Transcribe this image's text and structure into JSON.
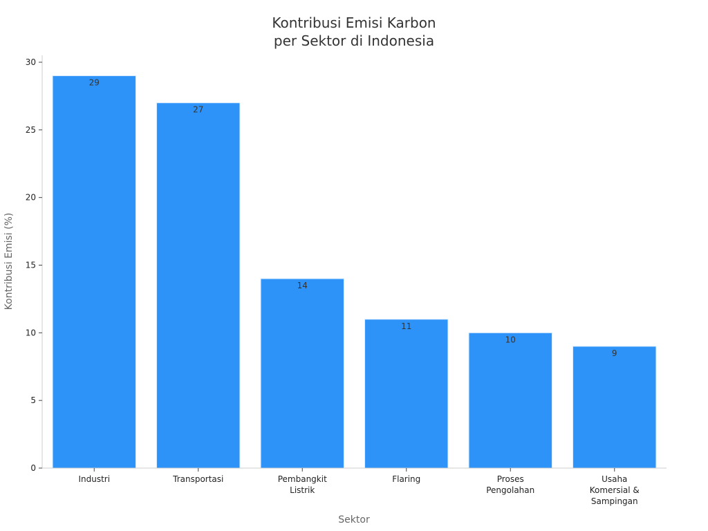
{
  "chart_data": {
    "type": "bar",
    "title_lines": [
      "Kontribusi Emisi Karbon",
      "per Sektor di Indonesia"
    ],
    "xlabel": "Sektor",
    "ylabel": "Kontribusi Emisi (%)",
    "ylim": [
      0,
      30.5
    ],
    "yticks": [
      0,
      5,
      10,
      15,
      20,
      25,
      30
    ],
    "categories": [
      [
        "Industri"
      ],
      [
        "Transportasi"
      ],
      [
        "Pembangkit",
        "Listrik"
      ],
      [
        "Flaring"
      ],
      [
        "Proses",
        "Pengolahan"
      ],
      [
        "Usaha",
        "Komersial &",
        "Sampingan"
      ]
    ],
    "values": [
      29,
      27,
      14,
      11,
      10,
      9
    ],
    "data_labels": [
      "29",
      "27",
      "14",
      "11",
      "10",
      "9"
    ],
    "bar_color": "#2e93f8",
    "grid": false,
    "legend": "none"
  }
}
